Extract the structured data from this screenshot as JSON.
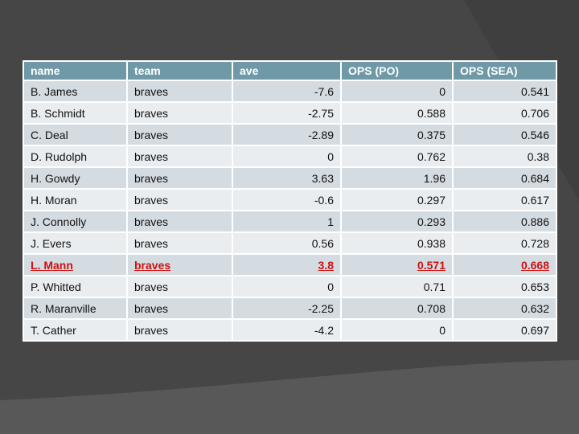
{
  "slide": {
    "background": {
      "base_color": "#464646",
      "wedge_color": "#3f3f3f",
      "swoosh_color": "#585858"
    }
  },
  "table": {
    "header_bg": "#6f99a7",
    "row_odd_bg": "#d5dce1",
    "row_even_bg": "#e9edf0",
    "highlight_color": "#cc1111",
    "columns": [
      {
        "key": "name",
        "label": "name",
        "align": "left"
      },
      {
        "key": "team",
        "label": "team",
        "align": "left"
      },
      {
        "key": "ave",
        "label": "ave",
        "align": "right"
      },
      {
        "key": "ops_po",
        "label": "OPS (PO)",
        "align": "right"
      },
      {
        "key": "ops_sea",
        "label": "OPS (SEA)",
        "align": "right"
      }
    ],
    "rows": [
      {
        "name": "B. James",
        "team": "braves",
        "ave": "-7.6",
        "ops_po": "0",
        "ops_sea": "0.541",
        "highlight": false
      },
      {
        "name": "B. Schmidt",
        "team": "braves",
        "ave": "-2.75",
        "ops_po": "0.588",
        "ops_sea": "0.706",
        "highlight": false
      },
      {
        "name": "C. Deal",
        "team": "braves",
        "ave": "-2.89",
        "ops_po": "0.375",
        "ops_sea": "0.546",
        "highlight": false
      },
      {
        "name": "D. Rudolph",
        "team": "braves",
        "ave": "0",
        "ops_po": "0.762",
        "ops_sea": "0.38",
        "highlight": false
      },
      {
        "name": "H. Gowdy",
        "team": "braves",
        "ave": "3.63",
        "ops_po": "1.96",
        "ops_sea": "0.684",
        "highlight": false
      },
      {
        "name": "H. Moran",
        "team": "braves",
        "ave": "-0.6",
        "ops_po": "0.297",
        "ops_sea": "0.617",
        "highlight": false
      },
      {
        "name": "J. Connolly",
        "team": "braves",
        "ave": "1",
        "ops_po": "0.293",
        "ops_sea": "0.886",
        "highlight": false
      },
      {
        "name": "J. Evers",
        "team": "braves",
        "ave": "0.56",
        "ops_po": "0.938",
        "ops_sea": "0.728",
        "highlight": false
      },
      {
        "name": "L. Mann",
        "team": "braves",
        "ave": "3.8",
        "ops_po": "0.571",
        "ops_sea": "0.668",
        "highlight": true
      },
      {
        "name": "P. Whitted",
        "team": "braves",
        "ave": "0",
        "ops_po": "0.71",
        "ops_sea": "0.653",
        "highlight": false
      },
      {
        "name": "R. Maranville",
        "team": "braves",
        "ave": "-2.25",
        "ops_po": "0.708",
        "ops_sea": "0.632",
        "highlight": false
      },
      {
        "name": "T. Cather",
        "team": "braves",
        "ave": "-4.2",
        "ops_po": "0",
        "ops_sea": "0.697",
        "highlight": false
      }
    ]
  }
}
